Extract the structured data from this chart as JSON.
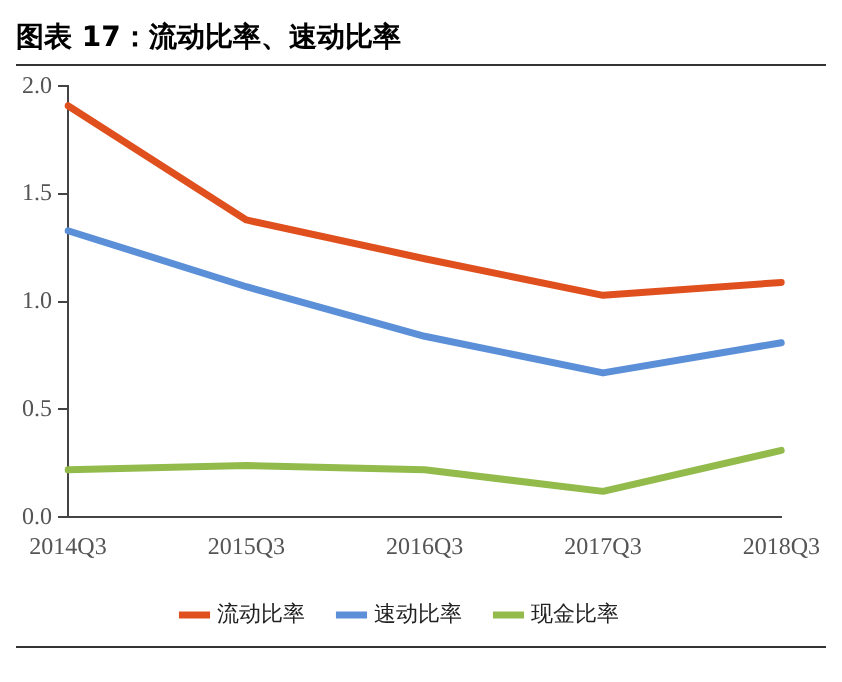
{
  "chart_data": {
    "type": "line",
    "title": "图表 17：流动比率、速动比率",
    "categories": [
      "2014Q3",
      "2015Q3",
      "2016Q3",
      "2017Q3",
      "2018Q3"
    ],
    "series": [
      {
        "name": "流动比率",
        "color": "#e0501e",
        "values": [
          1.91,
          1.38,
          1.2,
          1.03,
          1.09
        ]
      },
      {
        "name": "速动比率",
        "color": "#5b8fd8",
        "values": [
          1.33,
          1.07,
          0.84,
          0.67,
          0.81
        ]
      },
      {
        "name": "现金比率",
        "color": "#92bb4c",
        "values": [
          0.22,
          0.24,
          0.22,
          0.12,
          0.31
        ]
      }
    ],
    "ylim": [
      0,
      2
    ],
    "yticks": [
      {
        "value": 0,
        "label": "0.0"
      },
      {
        "value": 0.5,
        "label": "0.5"
      },
      {
        "value": 1,
        "label": "1.0"
      },
      {
        "value": 1.5,
        "label": "1.5"
      },
      {
        "value": 2,
        "label": "2.0"
      }
    ],
    "grid": false,
    "legend": "bottom",
    "marker": "none",
    "line_style": "solid"
  }
}
